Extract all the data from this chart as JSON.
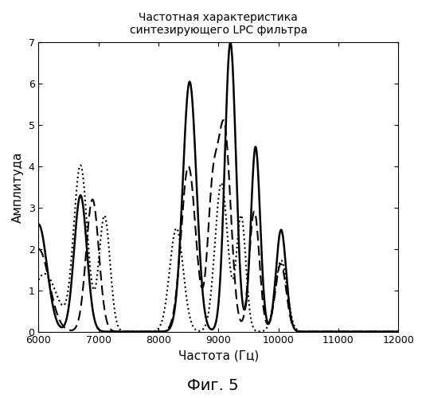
{
  "title_line1": "Частотная характеристика",
  "title_line2": "синтезирующего LPC фильтра",
  "xlabel": "Частота (Гц)",
  "ylabel": "Амплитуда",
  "caption": "Фиг. 5",
  "xlim": [
    6000,
    12000
  ],
  "ylim": [
    0,
    7
  ],
  "xticks": [
    6000,
    7000,
    8000,
    9000,
    10000,
    11000,
    12000
  ],
  "yticks": [
    0,
    1,
    2,
    3,
    4,
    5,
    6,
    7
  ],
  "background_color": "#ffffff",
  "line_color": "#000000"
}
